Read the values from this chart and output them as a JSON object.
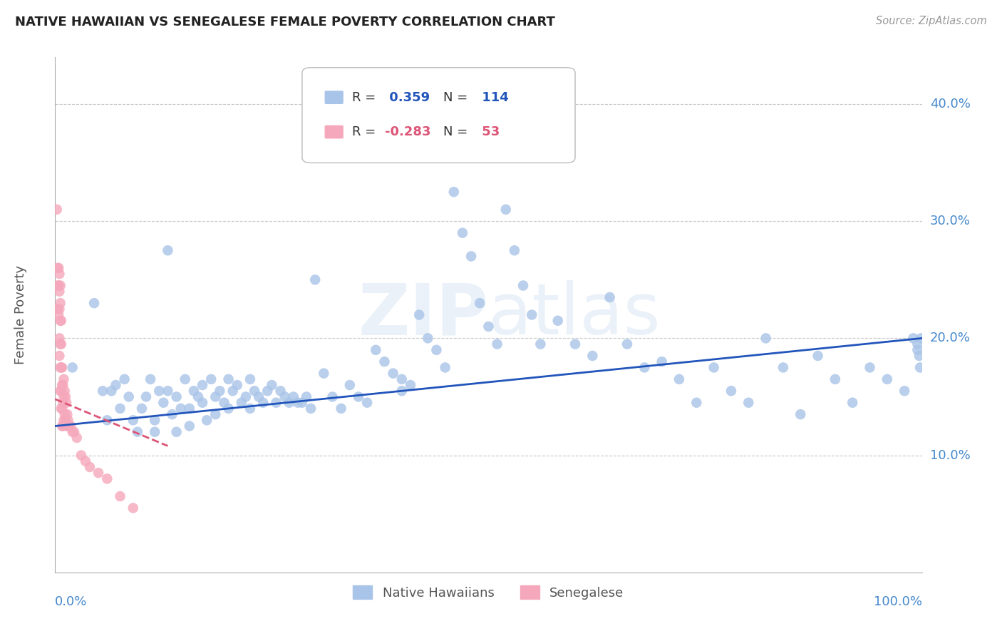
{
  "title": "NATIVE HAWAIIAN VS SENEGALESE FEMALE POVERTY CORRELATION CHART",
  "source": "Source: ZipAtlas.com",
  "ylabel": "Female Poverty",
  "xlim": [
    0.0,
    1.0
  ],
  "ylim": [
    0.0,
    0.44
  ],
  "blue_R": 0.359,
  "blue_N": 114,
  "pink_R": -0.283,
  "pink_N": 53,
  "blue_color": "#a8c4e8",
  "pink_color": "#f5a8bb",
  "blue_line_color": "#2255bb",
  "pink_line_color": "#dd5577",
  "grid_color": "#c8c8c8",
  "title_color": "#222222",
  "axis_label_color": "#4488cc",
  "watermark": "ZIPatlas",
  "blue_x": [
    0.02,
    0.045,
    0.055,
    0.06,
    0.065,
    0.07,
    0.075,
    0.08,
    0.085,
    0.09,
    0.095,
    0.1,
    0.105,
    0.11,
    0.115,
    0.115,
    0.12,
    0.125,
    0.13,
    0.13,
    0.135,
    0.14,
    0.14,
    0.145,
    0.15,
    0.155,
    0.155,
    0.16,
    0.165,
    0.17,
    0.17,
    0.175,
    0.18,
    0.185,
    0.185,
    0.19,
    0.195,
    0.2,
    0.2,
    0.205,
    0.21,
    0.215,
    0.22,
    0.225,
    0.225,
    0.23,
    0.235,
    0.24,
    0.245,
    0.25,
    0.255,
    0.26,
    0.265,
    0.27,
    0.275,
    0.28,
    0.285,
    0.29,
    0.295,
    0.3,
    0.31,
    0.32,
    0.33,
    0.34,
    0.35,
    0.36,
    0.37,
    0.38,
    0.39,
    0.4,
    0.4,
    0.41,
    0.42,
    0.43,
    0.44,
    0.45,
    0.46,
    0.47,
    0.48,
    0.49,
    0.5,
    0.51,
    0.52,
    0.53,
    0.54,
    0.55,
    0.56,
    0.58,
    0.6,
    0.62,
    0.64,
    0.66,
    0.68,
    0.7,
    0.72,
    0.74,
    0.76,
    0.78,
    0.8,
    0.82,
    0.84,
    0.86,
    0.88,
    0.9,
    0.92,
    0.94,
    0.96,
    0.98,
    0.99,
    0.995,
    0.995,
    0.997,
    0.998,
    0.999
  ],
  "blue_y": [
    0.175,
    0.23,
    0.155,
    0.13,
    0.155,
    0.16,
    0.14,
    0.165,
    0.15,
    0.13,
    0.12,
    0.14,
    0.15,
    0.165,
    0.13,
    0.12,
    0.155,
    0.145,
    0.275,
    0.155,
    0.135,
    0.15,
    0.12,
    0.14,
    0.165,
    0.14,
    0.125,
    0.155,
    0.15,
    0.16,
    0.145,
    0.13,
    0.165,
    0.15,
    0.135,
    0.155,
    0.145,
    0.165,
    0.14,
    0.155,
    0.16,
    0.145,
    0.15,
    0.165,
    0.14,
    0.155,
    0.15,
    0.145,
    0.155,
    0.16,
    0.145,
    0.155,
    0.15,
    0.145,
    0.15,
    0.145,
    0.145,
    0.15,
    0.14,
    0.25,
    0.17,
    0.15,
    0.14,
    0.16,
    0.15,
    0.145,
    0.19,
    0.18,
    0.17,
    0.165,
    0.155,
    0.16,
    0.22,
    0.2,
    0.19,
    0.175,
    0.325,
    0.29,
    0.27,
    0.23,
    0.21,
    0.195,
    0.31,
    0.275,
    0.245,
    0.22,
    0.195,
    0.215,
    0.195,
    0.185,
    0.235,
    0.195,
    0.175,
    0.18,
    0.165,
    0.145,
    0.175,
    0.155,
    0.145,
    0.2,
    0.175,
    0.135,
    0.185,
    0.165,
    0.145,
    0.175,
    0.165,
    0.155,
    0.2,
    0.195,
    0.19,
    0.185,
    0.175,
    0.2
  ],
  "pink_x": [
    0.002,
    0.003,
    0.003,
    0.003,
    0.004,
    0.004,
    0.004,
    0.005,
    0.005,
    0.005,
    0.005,
    0.005,
    0.006,
    0.006,
    0.006,
    0.006,
    0.006,
    0.006,
    0.007,
    0.007,
    0.007,
    0.007,
    0.007,
    0.008,
    0.008,
    0.008,
    0.008,
    0.009,
    0.009,
    0.009,
    0.01,
    0.01,
    0.01,
    0.011,
    0.011,
    0.012,
    0.012,
    0.013,
    0.013,
    0.014,
    0.015,
    0.016,
    0.018,
    0.02,
    0.022,
    0.025,
    0.03,
    0.035,
    0.04,
    0.05,
    0.06,
    0.075,
    0.09
  ],
  "pink_y": [
    0.31,
    0.26,
    0.245,
    0.225,
    0.26,
    0.245,
    0.22,
    0.255,
    0.24,
    0.225,
    0.2,
    0.185,
    0.245,
    0.23,
    0.215,
    0.195,
    0.175,
    0.155,
    0.215,
    0.195,
    0.175,
    0.155,
    0.14,
    0.175,
    0.16,
    0.14,
    0.125,
    0.16,
    0.145,
    0.125,
    0.165,
    0.15,
    0.13,
    0.155,
    0.135,
    0.15,
    0.13,
    0.145,
    0.125,
    0.135,
    0.13,
    0.125,
    0.125,
    0.12,
    0.12,
    0.115,
    0.1,
    0.095,
    0.09,
    0.085,
    0.08,
    0.065,
    0.055
  ],
  "blue_line_x": [
    0.0,
    1.0
  ],
  "blue_line_y": [
    0.125,
    0.2
  ],
  "pink_line_x": [
    0.0,
    0.13
  ],
  "pink_line_y": [
    0.148,
    0.108
  ]
}
